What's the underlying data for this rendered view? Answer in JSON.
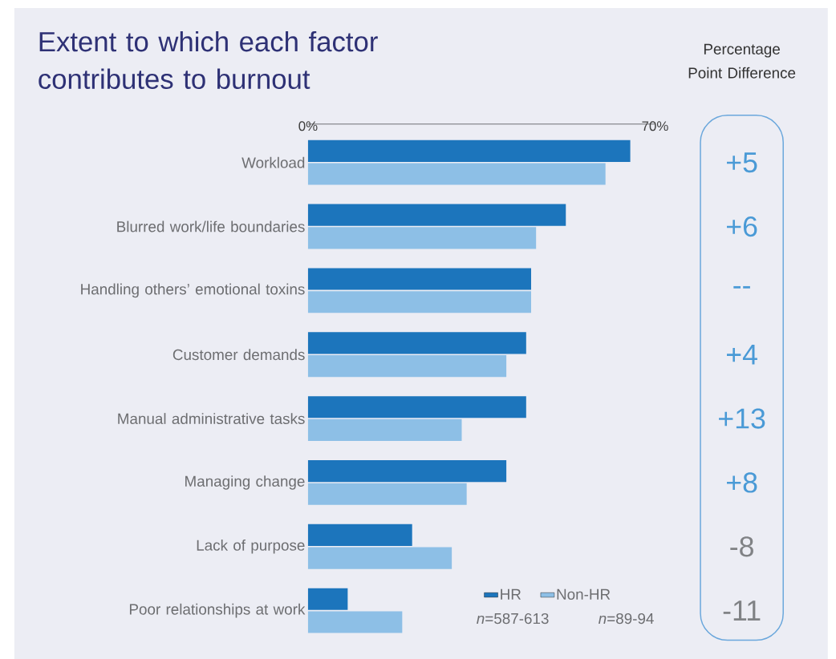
{
  "chart_data": {
    "type": "bar",
    "orientation": "horizontal",
    "title": "Extent to which each factor contributes to burnout",
    "categories": [
      "Workload",
      "Blurred work/life boundaries",
      "Handling others’ emotional toxins",
      "Customer demands",
      "Manual administrative tasks",
      "Managing change",
      "Lack of purpose",
      "Poor relationships at work"
    ],
    "series": [
      {
        "name": "HR",
        "color": "#1c75bc",
        "values": [
          65,
          52,
          45,
          44,
          44,
          40,
          21,
          8
        ]
      },
      {
        "name": "Non-HR",
        "color": "#8dbfe6",
        "values": [
          60,
          46,
          45,
          40,
          31,
          32,
          29,
          19
        ]
      }
    ],
    "xlim": [
      0,
      70
    ],
    "xticks": [
      {
        "value": 0,
        "label": "0%"
      },
      {
        "value": 70,
        "label": "70%"
      }
    ],
    "legend": "bottom right",
    "annotations": [
      "Percentage Point Difference",
      "*n*=587-613",
      "*n*=89-94",
      "+5",
      "+6",
      "--",
      "+4",
      "+13",
      "+8",
      "-8",
      "-11"
    ]
  }
}
